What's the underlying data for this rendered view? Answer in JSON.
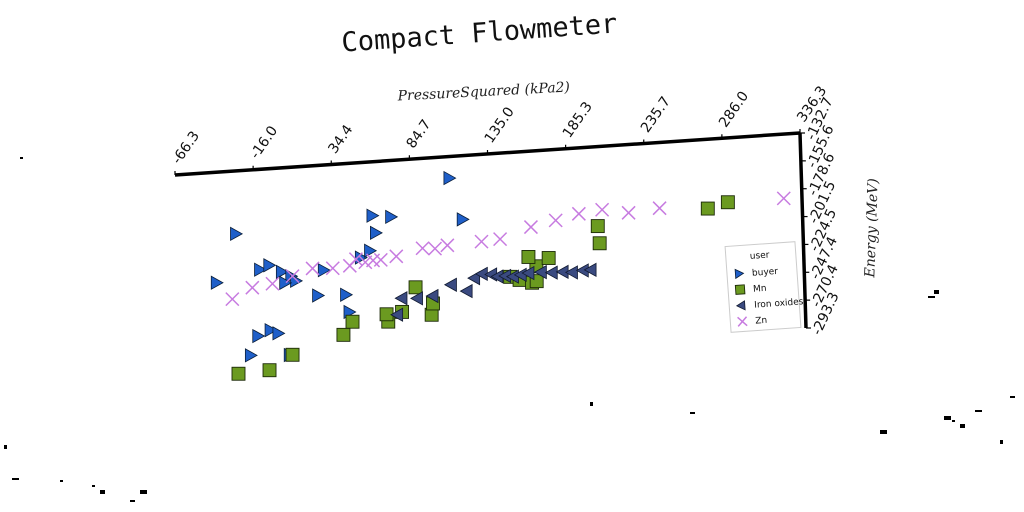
{
  "chart_data": {
    "type": "scatter",
    "title": "Compact Flowmeter",
    "xlabel": "PressureSquared (kPa2)",
    "ylabel": "Energy (MeV)",
    "xlim": [
      -66.3,
      336.3
    ],
    "ylim": [
      -293.3,
      -132.7
    ],
    "x_ticks": [
      "-66.3",
      "-16.0",
      "34.4",
      "84.7",
      "135.0",
      "185.3",
      "235.7",
      "286.0",
      "336.3"
    ],
    "y_ticks": [
      "-132.7",
      "-155.6",
      "-178.6",
      "-201.5",
      "-224.5",
      "-247.4",
      "-270.4",
      "-293.3"
    ],
    "legend_title": "user",
    "legend_position": "right",
    "grid": false,
    "series": [
      {
        "name": "buyer",
        "marker": "triangle-right",
        "color": "#1f5fc9",
        "points": [
          [
            -28,
            -183
          ],
          [
            -41,
            -221
          ],
          [
            -13,
            -213
          ],
          [
            -7,
            -210
          ],
          [
            1,
            -216
          ],
          [
            7,
            -220
          ],
          [
            10,
            -224
          ],
          [
            3,
            -225
          ],
          [
            28,
            -217
          ],
          [
            52,
            -209
          ],
          [
            58,
            -204
          ],
          [
            60,
            -176
          ],
          [
            72,
            -178
          ],
          [
            62,
            -190
          ],
          [
            110,
            -150
          ],
          [
            118,
            -184
          ],
          [
            24,
            -237
          ],
          [
            -15,
            -266
          ],
          [
            -7,
            -262
          ],
          [
            -2,
            -265
          ],
          [
            42,
            -238
          ],
          [
            44,
            -252
          ],
          [
            5,
            -283
          ],
          [
            -20,
            -281
          ]
        ]
      },
      {
        "name": "Mn",
        "marker": "square",
        "color": "#6b9a20",
        "points": [
          [
            -8,
            -294
          ],
          [
            -28,
            -295
          ],
          [
            7,
            -283
          ],
          [
            40,
            -270
          ],
          [
            46,
            -260
          ],
          [
            69,
            -262
          ],
          [
            78,
            -255
          ],
          [
            68,
            -256
          ],
          [
            97,
            -259
          ],
          [
            87,
            -236
          ],
          [
            205,
            -197
          ],
          [
            206,
            -211
          ],
          [
            276,
            -189
          ],
          [
            289,
            -185
          ],
          [
            148,
            -233
          ],
          [
            154,
            -236
          ],
          [
            162,
            -239
          ],
          [
            165,
            -226
          ],
          [
            160,
            -218
          ],
          [
            173,
            -220
          ],
          [
            98,
            -250
          ],
          [
            165,
            -238
          ]
        ]
      },
      {
        "name": "Iron oxides",
        "marker": "triangle-left",
        "color": "#3a4a80",
        "points": [
          [
            78,
            -244
          ],
          [
            88,
            -245
          ],
          [
            98,
            -244
          ],
          [
            110,
            -236
          ],
          [
            120,
            -242
          ],
          [
            125,
            -232
          ],
          [
            130,
            -229
          ],
          [
            136,
            -230
          ],
          [
            140,
            -232
          ],
          [
            145,
            -232
          ],
          [
            150,
            -233
          ],
          [
            155,
            -232
          ],
          [
            160,
            -231
          ],
          [
            168,
            -231
          ],
          [
            175,
            -232
          ],
          [
            182,
            -232
          ],
          [
            188,
            -233
          ],
          [
            195,
            -232
          ],
          [
            200,
            -232
          ],
          [
            75,
            -257
          ]
        ]
      },
      {
        "name": "Zn",
        "marker": "x",
        "color": "#c77be0",
        "points": [
          [
            -31,
            -235
          ],
          [
            -18,
            -227
          ],
          [
            -5,
            -225
          ],
          [
            8,
            -220
          ],
          [
            21,
            -215
          ],
          [
            34,
            -216
          ],
          [
            49,
            -210
          ],
          [
            60,
            -212
          ],
          [
            75,
            -210
          ],
          [
            92,
            -205
          ],
          [
            108,
            -204
          ],
          [
            130,
            -203
          ],
          [
            142,
            -202
          ],
          [
            162,
            -194
          ],
          [
            178,
            -190
          ],
          [
            193,
            -186
          ],
          [
            208,
            -184
          ],
          [
            225,
            -188
          ],
          [
            245,
            -186
          ],
          [
            325,
            -185
          ],
          [
            45,
            -215
          ],
          [
            55,
            -213
          ],
          [
            65,
            -212
          ],
          [
            100,
            -206
          ]
        ]
      }
    ]
  }
}
